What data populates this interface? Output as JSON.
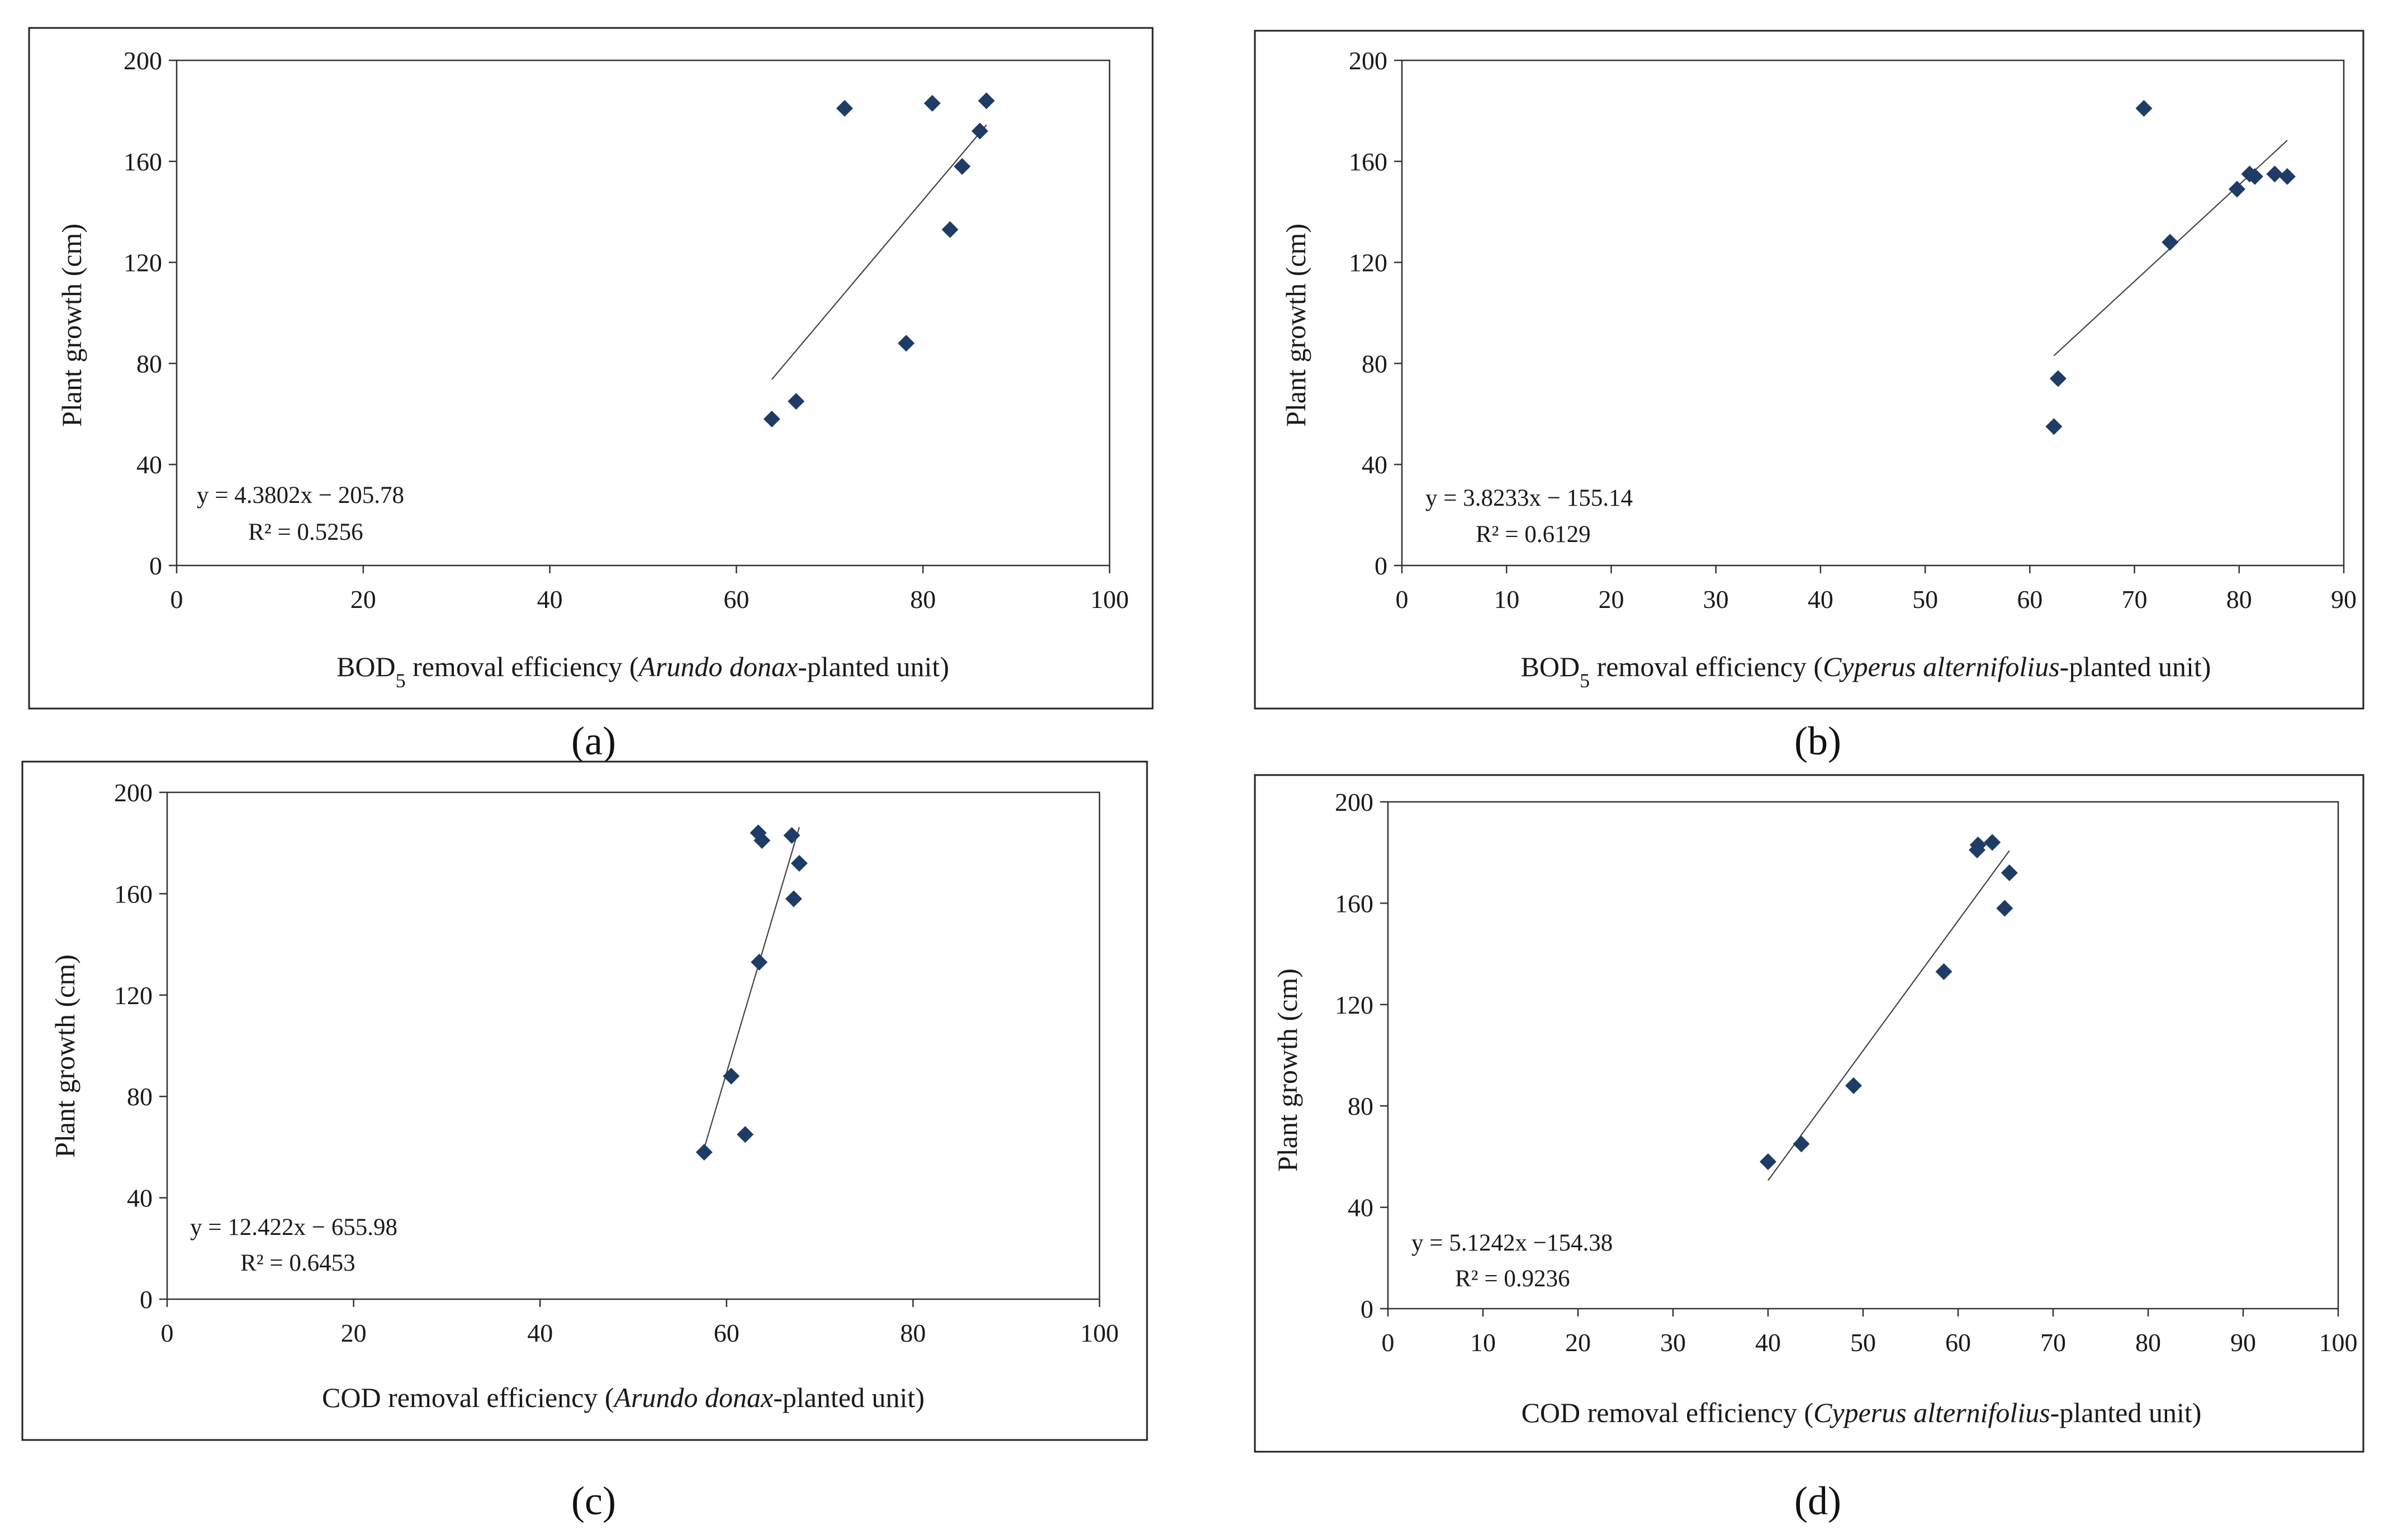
{
  "figure": {
    "ylabel": "Plant growth (cm)"
  },
  "chart_data": [
    {
      "id": "a",
      "type": "scatter",
      "panel_label": "(a)",
      "xlabel": "BOD5 removal efficiency (Arundo donax-planted unit)",
      "xlabel_parts": [
        {
          "text": "BOD",
          "style": "normal"
        },
        {
          "text": "5",
          "style": "sub"
        },
        {
          "text": " removal efficiency (",
          "style": "normal"
        },
        {
          "text": "Arundo donax",
          "style": "italic"
        },
        {
          "text": "-planted unit)",
          "style": "normal"
        }
      ],
      "ylabel": "Plant growth (cm)",
      "xlim": [
        0,
        100
      ],
      "ylim": [
        0,
        200
      ],
      "xticks": [
        0,
        20,
        40,
        60,
        80,
        100
      ],
      "yticks": [
        0,
        40,
        80,
        120,
        160,
        200
      ],
      "x": [
        63.8,
        66.4,
        71.6,
        78.2,
        81.0,
        82.9,
        84.2,
        86.1,
        86.8
      ],
      "y": [
        58,
        65,
        181,
        88,
        183,
        133,
        158,
        172,
        184
      ],
      "trendline": {
        "x": [
          63.8,
          86.8
        ],
        "slope": 4.3802,
        "intercept": -205.78
      },
      "equation": "y = 4.3802x − 205.78",
      "r2": "R² = 0.5256"
    },
    {
      "id": "b",
      "type": "scatter",
      "panel_label": "(b)",
      "xlabel": "BOD5 removal efficiency (Cyperus alternifolius-planted unit)",
      "xlabel_parts": [
        {
          "text": "BOD",
          "style": "normal"
        },
        {
          "text": "5",
          "style": "sub"
        },
        {
          "text": " removal efficiency (",
          "style": "normal"
        },
        {
          "text": "Cyperus alternifolius",
          "style": "italic"
        },
        {
          "text": "-planted unit)",
          "style": "normal"
        }
      ],
      "ylabel": "Plant growth (cm)",
      "xlim": [
        0,
        90
      ],
      "ylim": [
        0,
        200
      ],
      "xticks": [
        0,
        10,
        20,
        30,
        40,
        50,
        60,
        70,
        80,
        90
      ],
      "yticks": [
        0,
        40,
        80,
        120,
        160,
        200
      ],
      "x": [
        62.3,
        62.7,
        70.9,
        73.4,
        79.8,
        81.0,
        81.5,
        83.4,
        84.6
      ],
      "y": [
        55,
        74,
        181,
        128,
        149,
        155,
        154,
        155,
        154
      ],
      "trendline": {
        "x": [
          62.3,
          84.6
        ],
        "slope": 3.8233,
        "intercept": -155.14
      },
      "equation": "y = 3.8233x − 155.14",
      "r2": "R² = 0.6129"
    },
    {
      "id": "c",
      "type": "scatter",
      "panel_label": "(c)",
      "xlabel": "COD removal efficiency (Arundo donax-planted unit)",
      "xlabel_parts": [
        {
          "text": "COD removal efficiency  (",
          "style": "normal"
        },
        {
          "text": "Arundo donax",
          "style": "italic"
        },
        {
          "text": "-planted unit)",
          "style": "normal"
        }
      ],
      "ylabel": "Plant growth (cm)",
      "xlim": [
        0,
        100
      ],
      "ylim": [
        0,
        200
      ],
      "xticks": [
        0,
        20,
        40,
        60,
        80,
        100
      ],
      "yticks": [
        0,
        40,
        80,
        120,
        160,
        200
      ],
      "x": [
        57.6,
        60.5,
        62.0,
        63.4,
        63.5,
        63.8,
        67.0,
        67.2,
        67.8
      ],
      "y": [
        58,
        88,
        65,
        184,
        133,
        181,
        183,
        158,
        172
      ],
      "trendline": {
        "x": [
          57.6,
          67.8
        ],
        "slope": 12.422,
        "intercept": -655.98
      },
      "equation": "y = 12.422x − 655.98",
      "r2": "R² = 0.6453"
    },
    {
      "id": "d",
      "type": "scatter",
      "panel_label": "(d)",
      "xlabel": "COD removal efficiency (Cyperus alternifolius-planted unit)",
      "xlabel_parts": [
        {
          "text": "COD removal efficiency (",
          "style": "normal"
        },
        {
          "text": "Cyperus alternifolius",
          "style": "italic"
        },
        {
          "text": "-planted unit)",
          "style": "normal"
        }
      ],
      "ylabel": "Plant growth (cm)",
      "xlim": [
        0,
        100
      ],
      "ylim": [
        0,
        200
      ],
      "xticks": [
        0,
        10,
        20,
        30,
        40,
        50,
        60,
        70,
        80,
        90,
        100
      ],
      "yticks": [
        0,
        40,
        80,
        120,
        160,
        200
      ],
      "x": [
        40.0,
        43.5,
        49.0,
        58.5,
        62.0,
        62.1,
        63.6,
        64.9,
        65.4
      ],
      "y": [
        58,
        65,
        88,
        133,
        181,
        183,
        184,
        158,
        172
      ],
      "trendline": {
        "x": [
          40.0,
          65.4
        ],
        "slope": 5.1242,
        "intercept": -154.38
      },
      "equation": "y = 5.1242x −154.38",
      "r2": "R² = 0.9236"
    }
  ]
}
